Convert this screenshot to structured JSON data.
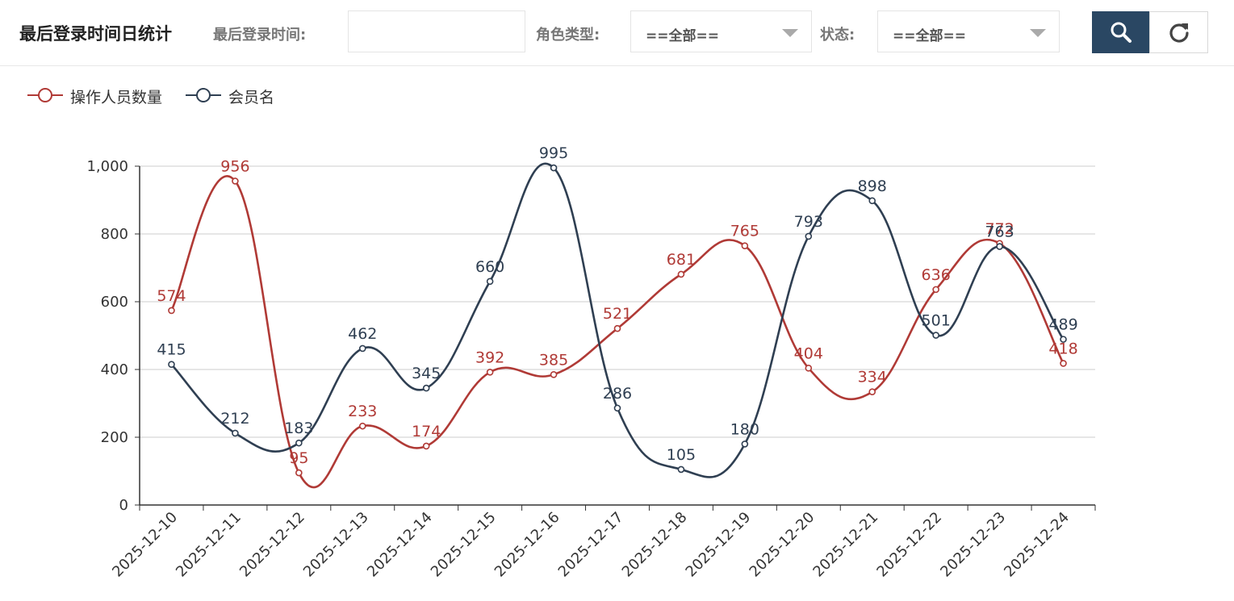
{
  "toolbar": {
    "title": "最后登录时间日统计",
    "login_time_label": "最后登录时间:",
    "login_time_value": "",
    "role_label": "角色类型:",
    "role_value": "==全部==",
    "status_label": "状态:",
    "status_value": "==全部==",
    "search_icon": "search-icon",
    "reset_icon": "refresh-icon",
    "accent_color": "#2a4763"
  },
  "chart_data": {
    "type": "line",
    "smooth": true,
    "categories": [
      "2025-12-10",
      "2025-12-11",
      "2025-12-12",
      "2025-12-13",
      "2025-12-14",
      "2025-12-15",
      "2025-12-16",
      "2025-12-17",
      "2025-12-18",
      "2025-12-19",
      "2025-12-20",
      "2025-12-21",
      "2025-12-22",
      "2025-12-23",
      "2025-12-24"
    ],
    "series": [
      {
        "name": "操作人员数量",
        "color": "#b03a36",
        "values": [
          574,
          956,
          95,
          233,
          174,
          392,
          385,
          521,
          681,
          765,
          404,
          334,
          636,
          772,
          418
        ]
      },
      {
        "name": "会员名",
        "color": "#2f3f52",
        "values": [
          415,
          212,
          183,
          462,
          345,
          660,
          995,
          286,
          105,
          180,
          793,
          898,
          501,
          763,
          489
        ]
      }
    ],
    "y_ticks": [
      "0",
      "200",
      "400",
      "600",
      "800",
      "1,000"
    ],
    "ylim": [
      0,
      1000
    ],
    "grid": true,
    "legend_position": "top-left",
    "data_labels": true
  }
}
